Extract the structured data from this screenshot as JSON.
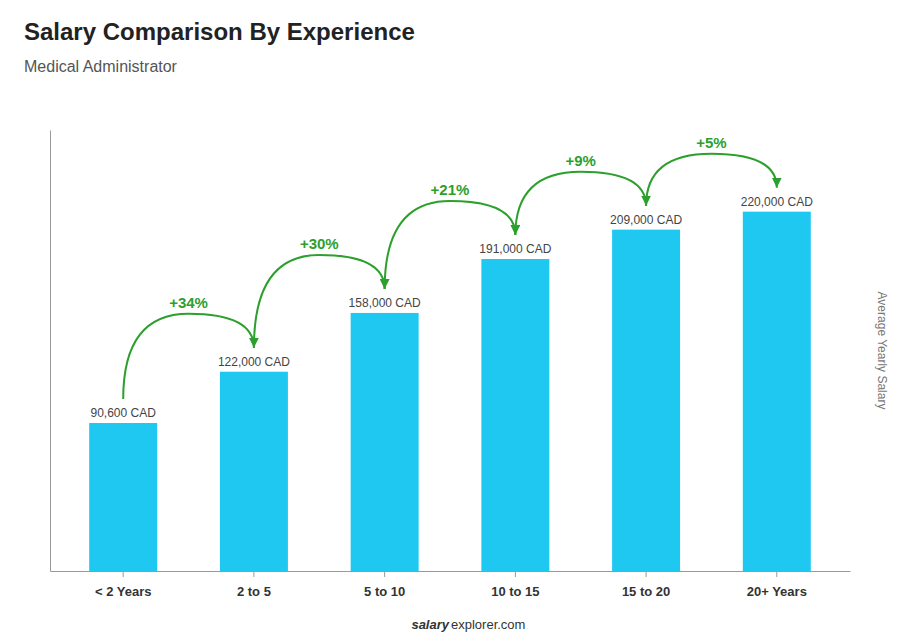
{
  "chart_data": {
    "type": "bar",
    "title": "Salary Comparison By Experience",
    "subtitle": "Medical Administrator",
    "ylabel": "Average Yearly Salary",
    "categories": [
      "< 2 Years",
      "2 to 5",
      "5 to 10",
      "10 to 15",
      "15 to 20",
      "20+ Years"
    ],
    "values": [
      90600,
      122000,
      158000,
      191000,
      209000,
      220000
    ],
    "value_labels": [
      "90,600 CAD",
      "122,000 CAD",
      "158,000 CAD",
      "191,000 CAD",
      "209,000 CAD",
      "220,000 CAD"
    ],
    "data_labels": true,
    "color": "#1EC8F0",
    "ylim": [
      0,
      270000
    ],
    "tick_labels": "x",
    "annotations": [
      "+34%",
      "+30%",
      "+21%",
      "+9%",
      "+5%"
    ],
    "footer": [
      "salary",
      "explorer.com"
    ]
  }
}
